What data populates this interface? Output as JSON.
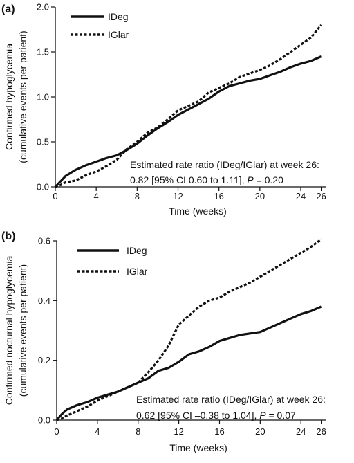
{
  "chart_data": [
    {
      "type": "line",
      "panel_label": "(a)",
      "xlabel": "Time (weeks)",
      "ylabel_line1": "Confirmed hypoglycemia",
      "ylabel_line2": "(cumulative events per patient)",
      "xlim": [
        0,
        26.5
      ],
      "ylim": [
        0,
        2.0
      ],
      "xticks": [
        0,
        4,
        8,
        12,
        16,
        20,
        24,
        26
      ],
      "yticks": [
        0.0,
        0.5,
        1.0,
        1.5,
        2.0
      ],
      "ytick_labels": [
        "0.0",
        "0.5",
        "1.0",
        "1.5",
        "2.0"
      ],
      "legend_position": "top-left",
      "annotation": {
        "line1": "Estimated rate ratio (IDeg/IGlar) at week 26:",
        "line2_prefix": "0.82 [95% CI 0.60 to 1.11], ",
        "p_symbol": "P",
        "line2_suffix": " = 0.20"
      },
      "series": [
        {
          "name": "IDeg",
          "style": "solid",
          "x": [
            0,
            0.5,
            1,
            2,
            3,
            4,
            5,
            6,
            7,
            8,
            9,
            10,
            11,
            12,
            13,
            14,
            15,
            16,
            17,
            18,
            19,
            20,
            21,
            22,
            23,
            24,
            25,
            26
          ],
          "y": [
            0,
            0.06,
            0.12,
            0.19,
            0.24,
            0.28,
            0.32,
            0.35,
            0.41,
            0.48,
            0.57,
            0.65,
            0.72,
            0.8,
            0.86,
            0.92,
            0.98,
            1.06,
            1.12,
            1.15,
            1.18,
            1.2,
            1.24,
            1.28,
            1.33,
            1.37,
            1.4,
            1.45
          ]
        },
        {
          "name": "IGlar",
          "style": "dashed",
          "x": [
            0,
            0.5,
            1,
            2,
            3,
            4,
            5,
            6,
            7,
            8,
            9,
            10,
            11,
            12,
            13,
            14,
            15,
            16,
            17,
            18,
            19,
            20,
            21,
            22,
            23,
            24,
            25,
            26
          ],
          "y": [
            0,
            0.02,
            0.05,
            0.07,
            0.13,
            0.17,
            0.23,
            0.3,
            0.42,
            0.5,
            0.6,
            0.66,
            0.75,
            0.85,
            0.9,
            0.95,
            1.05,
            1.1,
            1.15,
            1.22,
            1.26,
            1.3,
            1.35,
            1.42,
            1.5,
            1.58,
            1.66,
            1.8
          ]
        }
      ]
    },
    {
      "type": "line",
      "panel_label": "(b)",
      "xlabel": "Time (weeks)",
      "ylabel_line1": "Confirmed nocturnal hypoglycemia",
      "ylabel_line2": "(cumulative events per patient)",
      "xlim": [
        0,
        26.5
      ],
      "ylim": [
        0,
        0.6
      ],
      "xticks": [
        0,
        4,
        8,
        12,
        16,
        20,
        24,
        26
      ],
      "yticks": [
        0.0,
        0.2,
        0.4,
        0.6
      ],
      "ytick_labels": [
        "0.0",
        "0.2",
        "0.4",
        "0.6"
      ],
      "legend_position": "top-left",
      "annotation": {
        "line1": "Estimated rate ratio (IDeg/IGlar) at week 26:",
        "line2_prefix": "0.62 [95% CI –0.38 to 1.04], ",
        "p_symbol": "P",
        "line2_suffix": " = 0.07"
      },
      "series": [
        {
          "name": "IDeg",
          "style": "solid",
          "x": [
            0,
            0.5,
            1,
            2,
            3,
            4,
            5,
            6,
            7,
            8,
            9,
            10,
            11,
            12,
            13,
            14,
            15,
            16,
            17,
            18,
            19,
            20,
            21,
            22,
            23,
            24,
            25,
            26
          ],
          "y": [
            0,
            0.02,
            0.035,
            0.05,
            0.06,
            0.075,
            0.085,
            0.095,
            0.11,
            0.125,
            0.14,
            0.165,
            0.175,
            0.195,
            0.22,
            0.23,
            0.245,
            0.265,
            0.275,
            0.285,
            0.29,
            0.295,
            0.31,
            0.325,
            0.34,
            0.355,
            0.365,
            0.38
          ]
        },
        {
          "name": "IGlar",
          "style": "dashed",
          "x": [
            0,
            0.5,
            1,
            2,
            3,
            4,
            5,
            6,
            7,
            8,
            9,
            10,
            11,
            12,
            13,
            14,
            15,
            16,
            17,
            18,
            19,
            20,
            21,
            22,
            23,
            24,
            25,
            26
          ],
          "y": [
            0,
            0.005,
            0.015,
            0.03,
            0.045,
            0.065,
            0.08,
            0.095,
            0.11,
            0.125,
            0.16,
            0.2,
            0.25,
            0.32,
            0.35,
            0.38,
            0.4,
            0.41,
            0.43,
            0.445,
            0.46,
            0.48,
            0.5,
            0.52,
            0.54,
            0.56,
            0.58,
            0.605
          ]
        }
      ]
    }
  ]
}
